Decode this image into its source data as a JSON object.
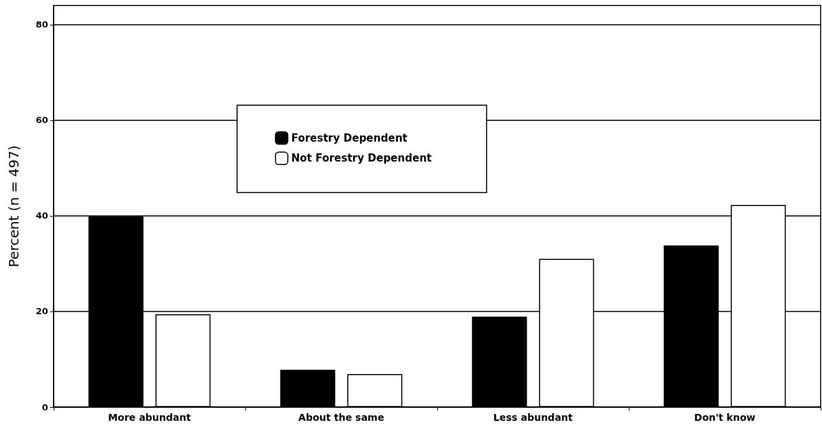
{
  "chart_data": {
    "type": "bar",
    "ylabel": "Percent (n = 497)",
    "categories": [
      "More abundant",
      "About the same",
      "Less abundant",
      "Don't know"
    ],
    "series": [
      {
        "name": "Forestry Dependent",
        "color": "#000000",
        "values": [
          39.9,
          7.8,
          18.9,
          33.8
        ]
      },
      {
        "name": "Not Forestry Dependent",
        "color": "#ffffff",
        "values": [
          19.4,
          6.9,
          31.0,
          42.3
        ]
      }
    ],
    "ylim": [
      0,
      84
    ],
    "yticks": [
      0,
      20,
      40,
      60,
      80
    ],
    "grid": "y",
    "legend": "top left"
  }
}
